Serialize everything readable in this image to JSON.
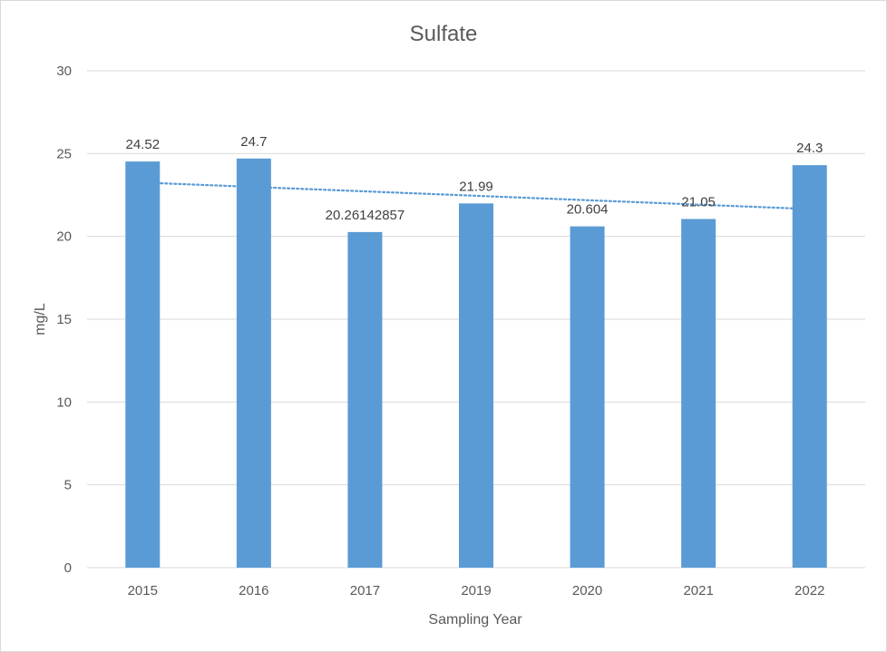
{
  "chart_data": {
    "type": "bar",
    "title": "Sulfate",
    "xlabel": "Sampling Year",
    "ylabel": "mg/L",
    "categories": [
      "2015",
      "2016",
      "2017",
      "2019",
      "2020",
      "2021",
      "2022"
    ],
    "values": [
      24.52,
      24.7,
      20.26142857,
      21.99,
      20.604,
      21.05,
      24.3
    ],
    "data_labels": [
      "24.52",
      "24.7",
      "20.26142857",
      "21.99",
      "20.604",
      "21.05",
      "24.3"
    ],
    "ylim": [
      0,
      30
    ],
    "yticks": [
      0,
      5,
      10,
      15,
      20,
      25,
      30
    ],
    "grid": true,
    "legend": "none",
    "trendline": {
      "type": "linear",
      "style": "dotted",
      "start_value": 23.25,
      "end_value": 21.65
    },
    "colors": {
      "bar": "#5b9bd5",
      "trendline": "#5b9bd5",
      "gridline": "#d9d9d9",
      "text": "#595959"
    }
  }
}
